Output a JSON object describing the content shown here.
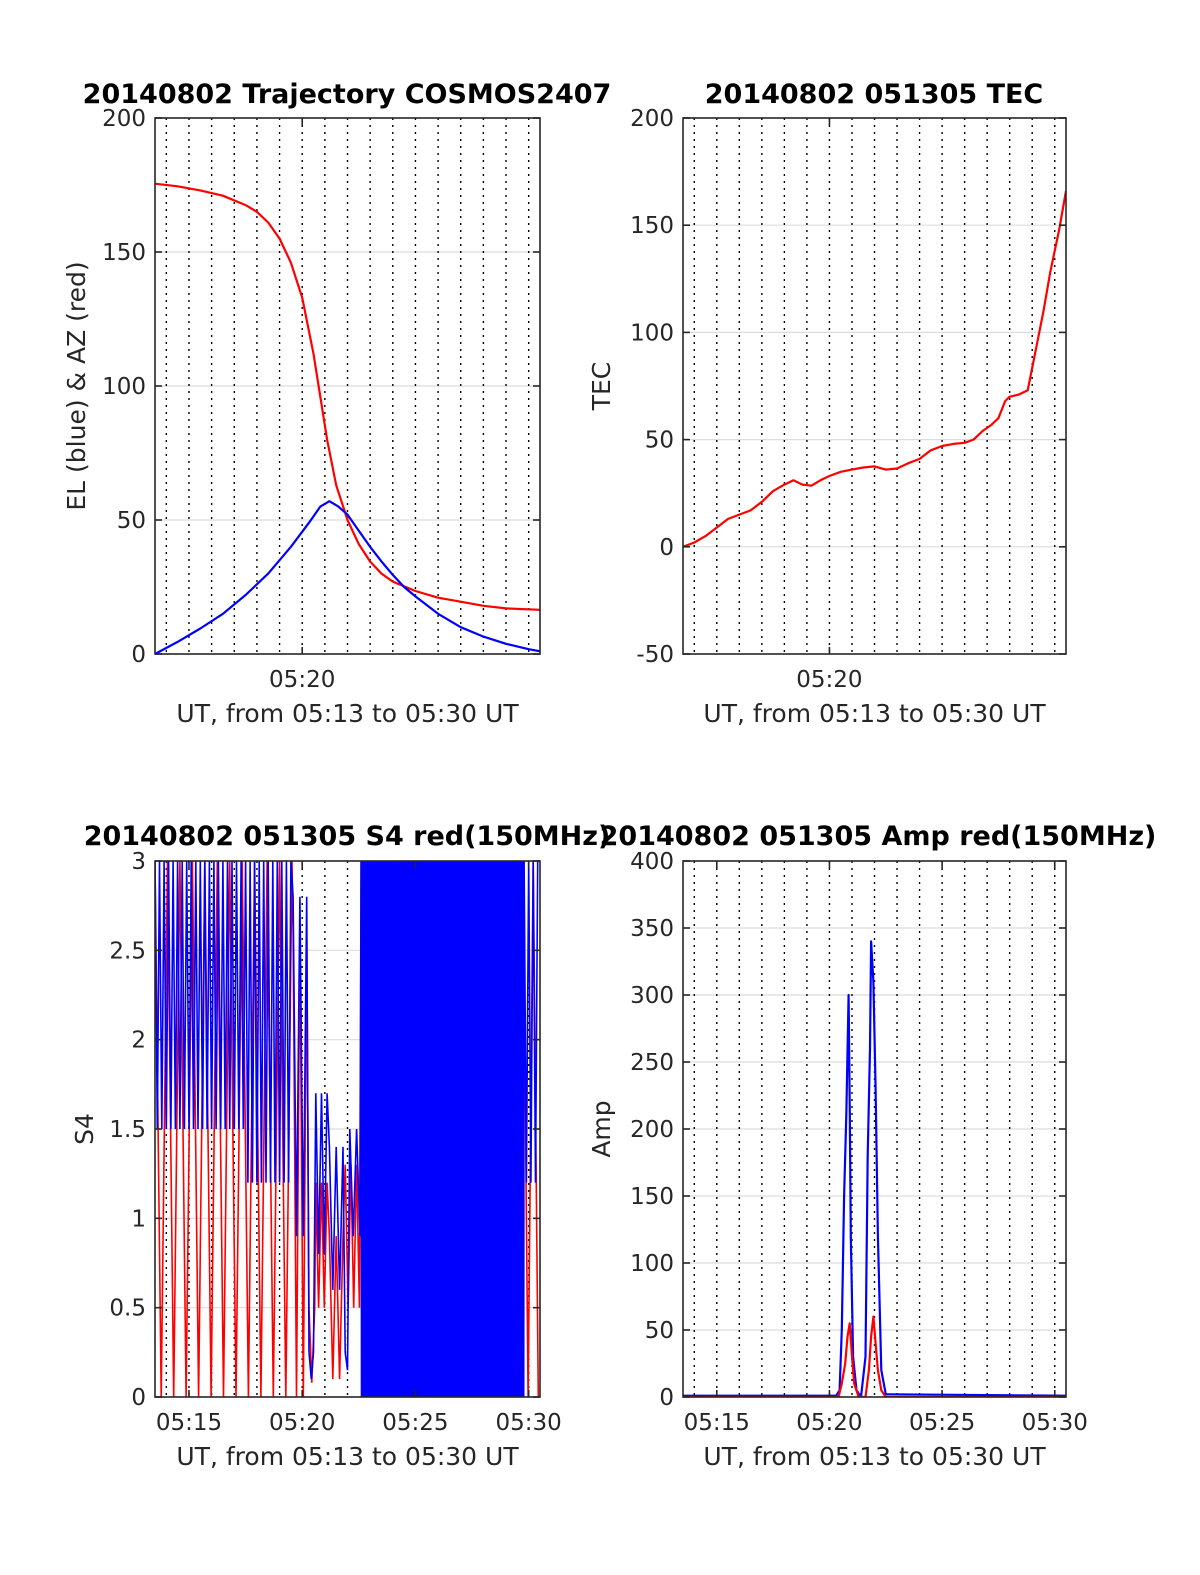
{
  "figure": {
    "background": "#ffffff",
    "colors": {
      "red": "#ff0000",
      "blue": "#0000ff",
      "axis": "#262626",
      "grid": "#dcdcdc"
    }
  },
  "chart_data": [
    {
      "id": "trajectory",
      "type": "line",
      "title": "20140802 Trajectory COSMOS2407",
      "xlabel": "UT, from 05:13 to 05:30 UT",
      "ylabel": "EL (blue) & AZ (red)",
      "xlim": [
        13.5,
        30.5
      ],
      "ylim": [
        0,
        200
      ],
      "yticks": [
        0,
        50,
        100,
        150,
        200
      ],
      "xticks": [
        {
          "x": 20,
          "label": "05:20"
        }
      ],
      "grid": "major-y solid, minor-x dotted every 1 min",
      "series": [
        {
          "name": "AZ",
          "color": "#ff0000",
          "points": [
            [
              13.5,
              175.5
            ],
            [
              14.5,
              174.5
            ],
            [
              15.5,
              173
            ],
            [
              16.5,
              171
            ],
            [
              17.5,
              167.5
            ],
            [
              18,
              165
            ],
            [
              18.5,
              161
            ],
            [
              19,
              155
            ],
            [
              19.5,
              146
            ],
            [
              20,
              133
            ],
            [
              20.5,
              112
            ],
            [
              20.8,
              96
            ],
            [
              21.1,
              80
            ],
            [
              21.5,
              63
            ],
            [
              22,
              50
            ],
            [
              22.5,
              41
            ],
            [
              23,
              34.5
            ],
            [
              23.5,
              30
            ],
            [
              24,
              27
            ],
            [
              25,
              23.5
            ],
            [
              26,
              21
            ],
            [
              27,
              19.5
            ],
            [
              28,
              18
            ],
            [
              29,
              17
            ],
            [
              30.5,
              16.5
            ]
          ]
        },
        {
          "name": "EL",
          "color": "#0000ff",
          "points": [
            [
              13.5,
              0
            ],
            [
              14.5,
              4.5
            ],
            [
              15.5,
              9.5
            ],
            [
              16.5,
              15
            ],
            [
              17.5,
              22
            ],
            [
              18.5,
              30
            ],
            [
              19.5,
              40
            ],
            [
              20.3,
              49
            ],
            [
              20.8,
              55
            ],
            [
              21.2,
              57
            ],
            [
              21.6,
              55
            ],
            [
              22,
              52
            ],
            [
              22.5,
              46
            ],
            [
              23,
              40
            ],
            [
              23.5,
              34.5
            ],
            [
              24,
              29.5
            ],
            [
              24.5,
              25
            ],
            [
              25,
              21.5
            ],
            [
              26,
              15
            ],
            [
              27,
              10
            ],
            [
              28,
              6.5
            ],
            [
              29,
              3.8
            ],
            [
              30,
              1.8
            ],
            [
              30.5,
              1
            ]
          ]
        }
      ]
    },
    {
      "id": "tec",
      "type": "line",
      "title": "20140802 051305 TEC",
      "xlabel": "UT, from 05:13 to 05:30 UT",
      "ylabel": "TEC",
      "xlim": [
        13.5,
        30.5
      ],
      "ylim": [
        -50,
        200
      ],
      "yticks": [
        -50,
        0,
        50,
        100,
        150,
        200
      ],
      "xticks": [
        {
          "x": 20,
          "label": "05:20"
        }
      ],
      "grid": "major-y solid, minor-x dotted every 1 min",
      "series": [
        {
          "name": "TEC",
          "color": "#ff0000",
          "points": [
            [
              13.5,
              0
            ],
            [
              14,
              2
            ],
            [
              14.5,
              5
            ],
            [
              15,
              9
            ],
            [
              15.5,
              13
            ],
            [
              16,
              15
            ],
            [
              16.5,
              17
            ],
            [
              17,
              21
            ],
            [
              17.5,
              26
            ],
            [
              18,
              29
            ],
            [
              18.4,
              31
            ],
            [
              18.8,
              29
            ],
            [
              19.2,
              28.5
            ],
            [
              19.6,
              31
            ],
            [
              20,
              33
            ],
            [
              20.5,
              35
            ],
            [
              21,
              36
            ],
            [
              21.5,
              37
            ],
            [
              22,
              37.5
            ],
            [
              22.5,
              36
            ],
            [
              23,
              36.5
            ],
            [
              23.5,
              39
            ],
            [
              24,
              41
            ],
            [
              24.5,
              45
            ],
            [
              25,
              47
            ],
            [
              25.5,
              48
            ],
            [
              26,
              48.5
            ],
            [
              26.4,
              50
            ],
            [
              26.8,
              54
            ],
            [
              27.2,
              57
            ],
            [
              27.5,
              60
            ],
            [
              27.8,
              68
            ],
            [
              28,
              70
            ],
            [
              28.4,
              71
            ],
            [
              28.8,
              73
            ],
            [
              29.2,
              94
            ],
            [
              29.5,
              110
            ],
            [
              29.8,
              128
            ],
            [
              30,
              138
            ],
            [
              30.2,
              148
            ],
            [
              30.5,
              166
            ]
          ]
        }
      ]
    },
    {
      "id": "s4",
      "type": "line",
      "title": "20140802 051305 S4 red(150MHz)",
      "xlabel": "UT, from 05:13 to 05:30 UT",
      "ylabel": "S4",
      "xlim": [
        13.5,
        30.5
      ],
      "ylim": [
        0,
        3
      ],
      "yticks": [
        0,
        0.5,
        1,
        1.5,
        2,
        2.5,
        3
      ],
      "xticks": [
        {
          "x": 15,
          "label": "05:15"
        },
        {
          "x": 20,
          "label": "05:20"
        },
        {
          "x": 25,
          "label": "05:25"
        },
        {
          "x": 30,
          "label": "05:30"
        }
      ],
      "grid": "major-y solid, minor-x dotted every 1 min",
      "series": [
        {
          "name": "red",
          "color": "#ff0000",
          "segments": [
            [
              13.5,
              0,
              3,
              0.55
            ],
            [
              19.6,
              0,
              2.6,
              0.3
            ],
            [
              20.3,
              0.08,
              0.5,
              0.25
            ],
            [
              20.6,
              0.5,
              1.2,
              0.25
            ],
            [
              21.2,
              0.1,
              0.9,
              0.3
            ],
            [
              21.9,
              0.5,
              1.3,
              0.25
            ],
            [
              22.6,
              0,
              3,
              0.4
            ],
            [
              27.5,
              0,
              3,
              0.45
            ]
          ]
        },
        {
          "name": "blue",
          "color": "#0000ff",
          "segments": [
            [
              13.5,
              1.5,
              3,
              0.2
            ],
            [
              17.5,
              1.2,
              3,
              0.2
            ],
            [
              19.6,
              0.9,
              2.8,
              0.3
            ],
            [
              20.3,
              0.1,
              0.25,
              0.2
            ],
            [
              20.6,
              0.8,
              1.7,
              0.25
            ],
            [
              21.2,
              0.6,
              1.4,
              0.3
            ],
            [
              21.9,
              0.15,
              0.25,
              0.2
            ],
            [
              22.1,
              0.9,
              1.5,
              0.3
            ],
            [
              22.6,
              0,
              3,
              0.04
            ],
            [
              29.8,
              1.2,
              3,
              0.2
            ]
          ]
        }
      ]
    },
    {
      "id": "amp",
      "type": "line",
      "title": "20140802 051305 Amp red(150MHz)",
      "xlabel": "UT, from 05:13 to 05:30 UT",
      "ylabel": "Amp",
      "xlim": [
        13.5,
        30.5
      ],
      "ylim": [
        0,
        400
      ],
      "yticks": [
        0,
        50,
        100,
        150,
        200,
        250,
        300,
        350,
        400
      ],
      "xticks": [
        {
          "x": 15,
          "label": "05:15"
        },
        {
          "x": 20,
          "label": "05:20"
        },
        {
          "x": 25,
          "label": "05:25"
        },
        {
          "x": 30,
          "label": "05:30"
        }
      ],
      "grid": "major-y solid, minor-x dotted every 1 min",
      "series": [
        {
          "name": "blue",
          "color": "#0000ff",
          "points": [
            [
              13.5,
              1
            ],
            [
              20.3,
              1
            ],
            [
              20.45,
              5
            ],
            [
              20.55,
              50
            ],
            [
              20.65,
              150
            ],
            [
              20.75,
              210
            ],
            [
              20.85,
              300
            ],
            [
              20.9,
              220
            ],
            [
              20.95,
              120
            ],
            [
              21.05,
              30
            ],
            [
              21.2,
              5
            ],
            [
              21.4,
              0
            ],
            [
              21.6,
              30
            ],
            [
              21.7,
              180
            ],
            [
              21.8,
              260
            ],
            [
              21.85,
              340
            ],
            [
              21.95,
              310
            ],
            [
              22.05,
              230
            ],
            [
              22.15,
              120
            ],
            [
              22.3,
              20
            ],
            [
              22.5,
              2
            ],
            [
              30.5,
              1
            ]
          ]
        },
        {
          "name": "red",
          "color": "#ff0000",
          "points": [
            [
              13.5,
              0
            ],
            [
              20.4,
              0
            ],
            [
              20.55,
              10
            ],
            [
              20.7,
              25
            ],
            [
              20.8,
              45
            ],
            [
              20.9,
              55
            ],
            [
              21.0,
              30
            ],
            [
              21.1,
              10
            ],
            [
              21.3,
              0
            ],
            [
              21.6,
              0
            ],
            [
              21.75,
              20
            ],
            [
              21.85,
              45
            ],
            [
              21.95,
              60
            ],
            [
              22.05,
              40
            ],
            [
              22.15,
              20
            ],
            [
              22.3,
              5
            ],
            [
              22.5,
              0
            ],
            [
              30.5,
              0
            ]
          ]
        }
      ]
    }
  ]
}
